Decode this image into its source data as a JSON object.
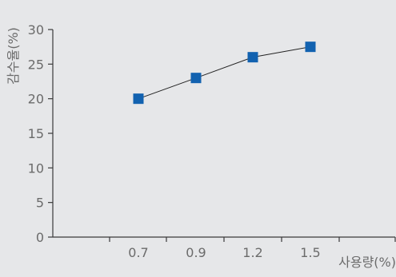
{
  "chart_data": {
    "type": "line",
    "title": "",
    "xlabel": "사용량(%)",
    "ylabel": "감수율(%)",
    "categories": [
      "0.7",
      "0.9",
      "1.2",
      "1.5"
    ],
    "yticks": [
      "0",
      "5",
      "10",
      "15",
      "20",
      "25",
      "30"
    ],
    "ylim": [
      0,
      30
    ],
    "grid": false,
    "series": [
      {
        "values": [
          20,
          23,
          26,
          27.5
        ],
        "color": "#1262b0",
        "marker": "square"
      }
    ]
  }
}
